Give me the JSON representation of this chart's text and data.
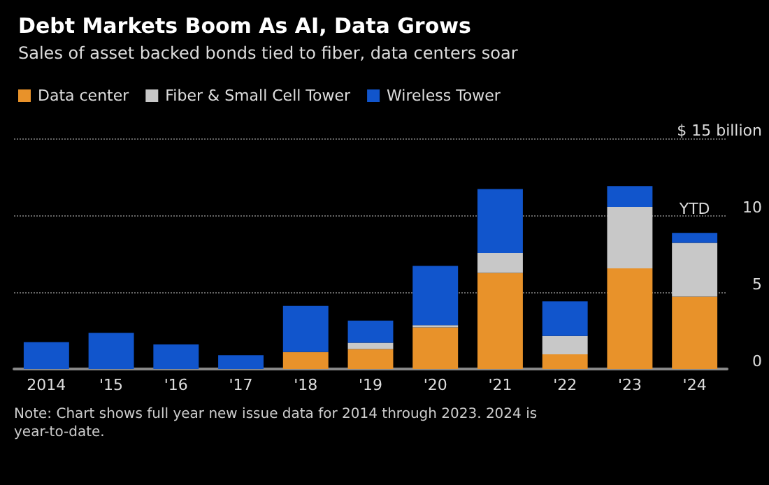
{
  "chart_data": {
    "type": "bar",
    "title": "Debt Markets Boom As AI, Data Grows",
    "subtitle": "Sales of asset backed bonds tied to fiber, data centers soar",
    "categories": [
      "2014",
      "'15",
      "'16",
      "'17",
      "'18",
      "'19",
      "'20",
      "'21",
      "'22",
      "'23",
      "'24"
    ],
    "stacked": true,
    "series": [
      {
        "name": "Data center",
        "color": "#e8922a",
        "values": [
          0,
          0,
          0,
          0,
          1.1,
          1.3,
          2.7,
          6.25,
          0.95,
          6.55,
          4.7
        ]
      },
      {
        "name": "Fiber & Small Cell Tower",
        "color": "#c8c8c8",
        "values": [
          0,
          0,
          0,
          0,
          0,
          0.4,
          0.15,
          1.3,
          1.2,
          4.0,
          3.5
        ]
      },
      {
        "name": "Wireless Tower",
        "color": "#1155cc",
        "values": [
          1.75,
          2.35,
          1.6,
          0.9,
          3.0,
          1.45,
          3.85,
          4.15,
          2.25,
          1.35,
          0.65
        ]
      }
    ],
    "ylim": [
      0,
      15
    ],
    "yticks": [
      0,
      5,
      10,
      {
        "value": 15,
        "label": "$ 15 billion"
      }
    ],
    "grid": "y",
    "legend": "top left",
    "annotations": [
      {
        "text": "YTD",
        "x": "'24",
        "y": 8.84
      },
      "Note: Chart shows full year new issue data for 2014 through 2023. 2024 is year-to-date."
    ]
  }
}
